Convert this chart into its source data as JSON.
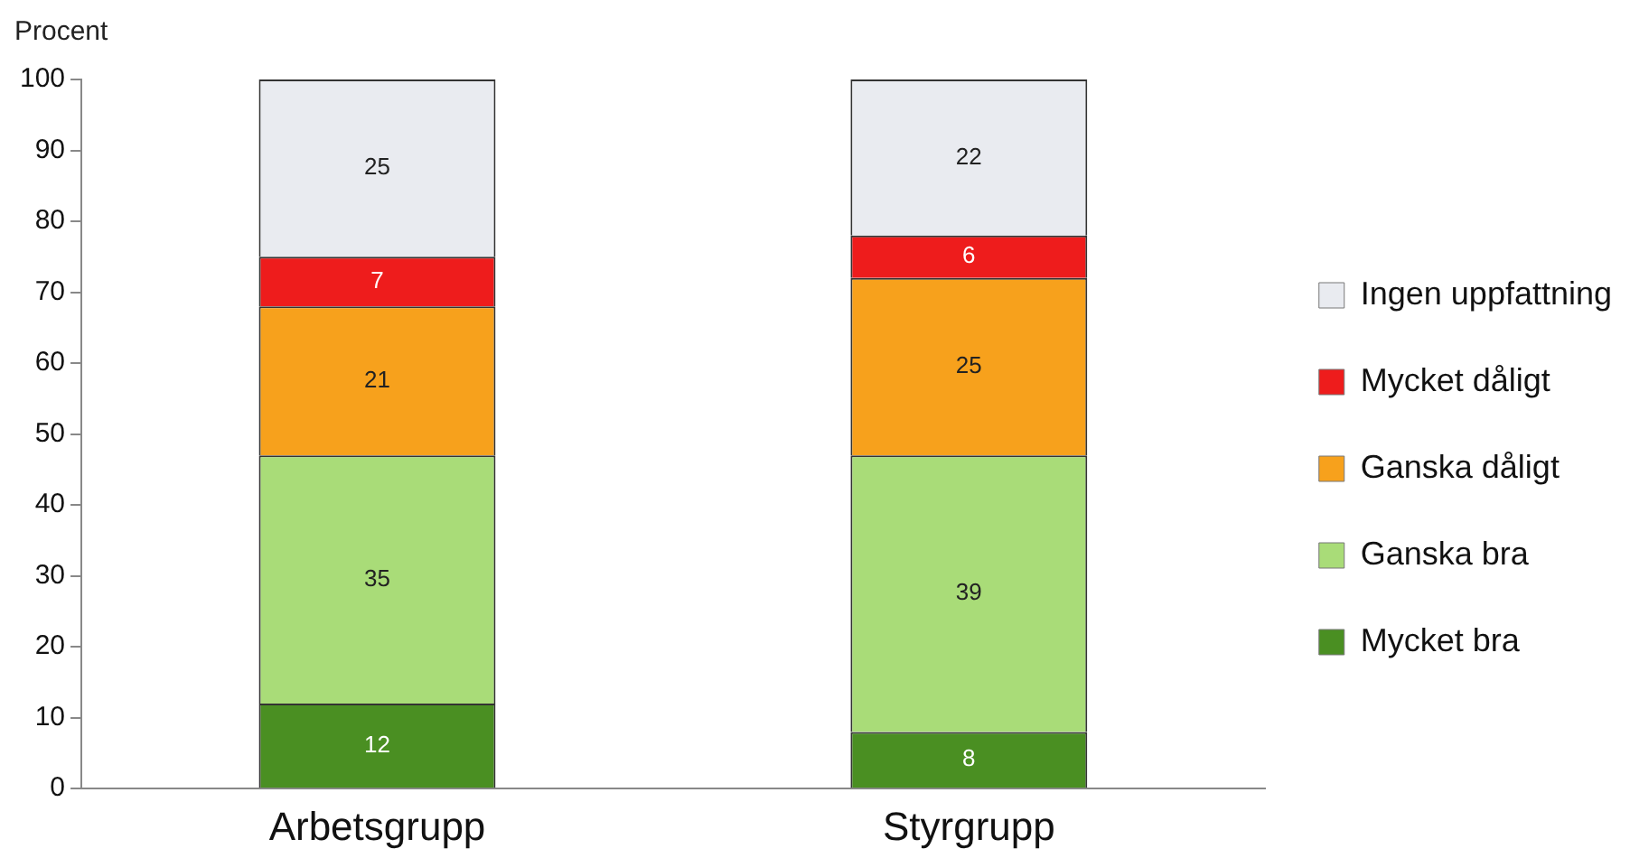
{
  "chart_data": {
    "type": "bar",
    "stacked": true,
    "ylabel": "Procent",
    "categories": [
      "Arbetsgrupp",
      "Styrgrupp"
    ],
    "series": [
      {
        "name": "Mycket bra",
        "color": "#4a8f22",
        "values": [
          12,
          8
        ]
      },
      {
        "name": "Ganska bra",
        "color": "#a9dc78",
        "values": [
          35,
          39
        ]
      },
      {
        "name": "Ganska dåligt",
        "color": "#f7a11c",
        "values": [
          21,
          25
        ]
      },
      {
        "name": "Mycket dåligt",
        "color": "#ee1c1c",
        "values": [
          7,
          6
        ]
      },
      {
        "name": "Ingen uppfattning",
        "color": "#e9ebf0",
        "values": [
          25,
          22
        ]
      }
    ],
    "ylim": [
      0,
      100
    ],
    "yticks": [
      0,
      10,
      20,
      30,
      40,
      50,
      60,
      70,
      80,
      90,
      100
    ],
    "grid": false,
    "legend": "right",
    "data_labels": true
  }
}
